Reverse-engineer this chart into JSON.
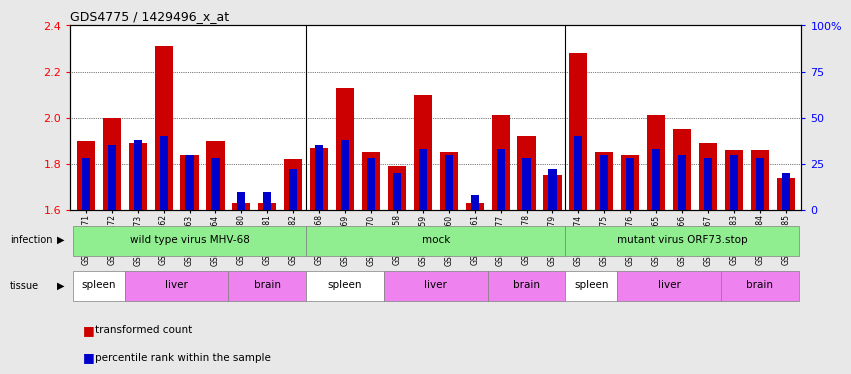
{
  "title": "GDS4775 / 1429496_x_at",
  "samples": [
    "GSM1243471",
    "GSM1243472",
    "GSM1243473",
    "GSM1243462",
    "GSM1243463",
    "GSM1243464",
    "GSM1243480",
    "GSM1243481",
    "GSM1243482",
    "GSM1243468",
    "GSM1243469",
    "GSM1243470",
    "GSM1243458",
    "GSM1243459",
    "GSM1243460",
    "GSM1243461",
    "GSM1243477",
    "GSM1243478",
    "GSM1243479",
    "GSM1243474",
    "GSM1243475",
    "GSM1243476",
    "GSM1243465",
    "GSM1243466",
    "GSM1243467",
    "GSM1243483",
    "GSM1243484",
    "GSM1243485"
  ],
  "red_values": [
    1.9,
    2.0,
    1.89,
    2.31,
    1.84,
    1.9,
    1.63,
    1.63,
    1.82,
    1.87,
    2.13,
    1.85,
    1.79,
    2.1,
    1.85,
    1.63,
    2.01,
    1.92,
    1.75,
    2.28,
    1.85,
    1.84,
    2.01,
    1.95,
    1.89,
    1.86,
    1.86,
    1.74
  ],
  "blue_percentile": [
    28,
    35,
    38,
    40,
    30,
    28,
    10,
    10,
    22,
    35,
    38,
    28,
    20,
    33,
    30,
    8,
    33,
    28,
    22,
    40,
    30,
    28,
    33,
    30,
    28,
    30,
    28,
    20
  ],
  "ylim_left": [
    1.6,
    2.4
  ],
  "ylim_right": [
    0,
    100
  ],
  "yticks_left": [
    1.6,
    1.8,
    2.0,
    2.2,
    2.4
  ],
  "yticks_right": [
    0,
    25,
    50,
    75,
    100
  ],
  "bar_color_red": "#cc0000",
  "bar_color_blue": "#0000cc",
  "bar_width": 0.7,
  "infection_groups": [
    {
      "label": "wild type virus MHV-68",
      "start": 0,
      "end": 8
    },
    {
      "label": "mock",
      "start": 9,
      "end": 18
    },
    {
      "label": "mutant virus ORF73.stop",
      "start": 19,
      "end": 27
    }
  ],
  "infection_color": "#90ee90",
  "tissue_groups": [
    {
      "label": "spleen",
      "start": 0,
      "end": 1,
      "color": "#ffffff"
    },
    {
      "label": "liver",
      "start": 2,
      "end": 5,
      "color": "#ee82ee"
    },
    {
      "label": "brain",
      "start": 6,
      "end": 8,
      "color": "#ee82ee"
    },
    {
      "label": "spleen",
      "start": 9,
      "end": 11,
      "color": "#ffffff"
    },
    {
      "label": "liver",
      "start": 12,
      "end": 15,
      "color": "#ee82ee"
    },
    {
      "label": "brain",
      "start": 16,
      "end": 18,
      "color": "#ee82ee"
    },
    {
      "label": "spleen",
      "start": 19,
      "end": 20,
      "color": "#ffffff"
    },
    {
      "label": "liver",
      "start": 21,
      "end": 24,
      "color": "#ee82ee"
    },
    {
      "label": "brain",
      "start": 25,
      "end": 27,
      "color": "#ee82ee"
    }
  ],
  "bg_color": "#e8e8e8",
  "plot_bg_color": "#ffffff",
  "group_separators": [
    8.5,
    18.5
  ]
}
